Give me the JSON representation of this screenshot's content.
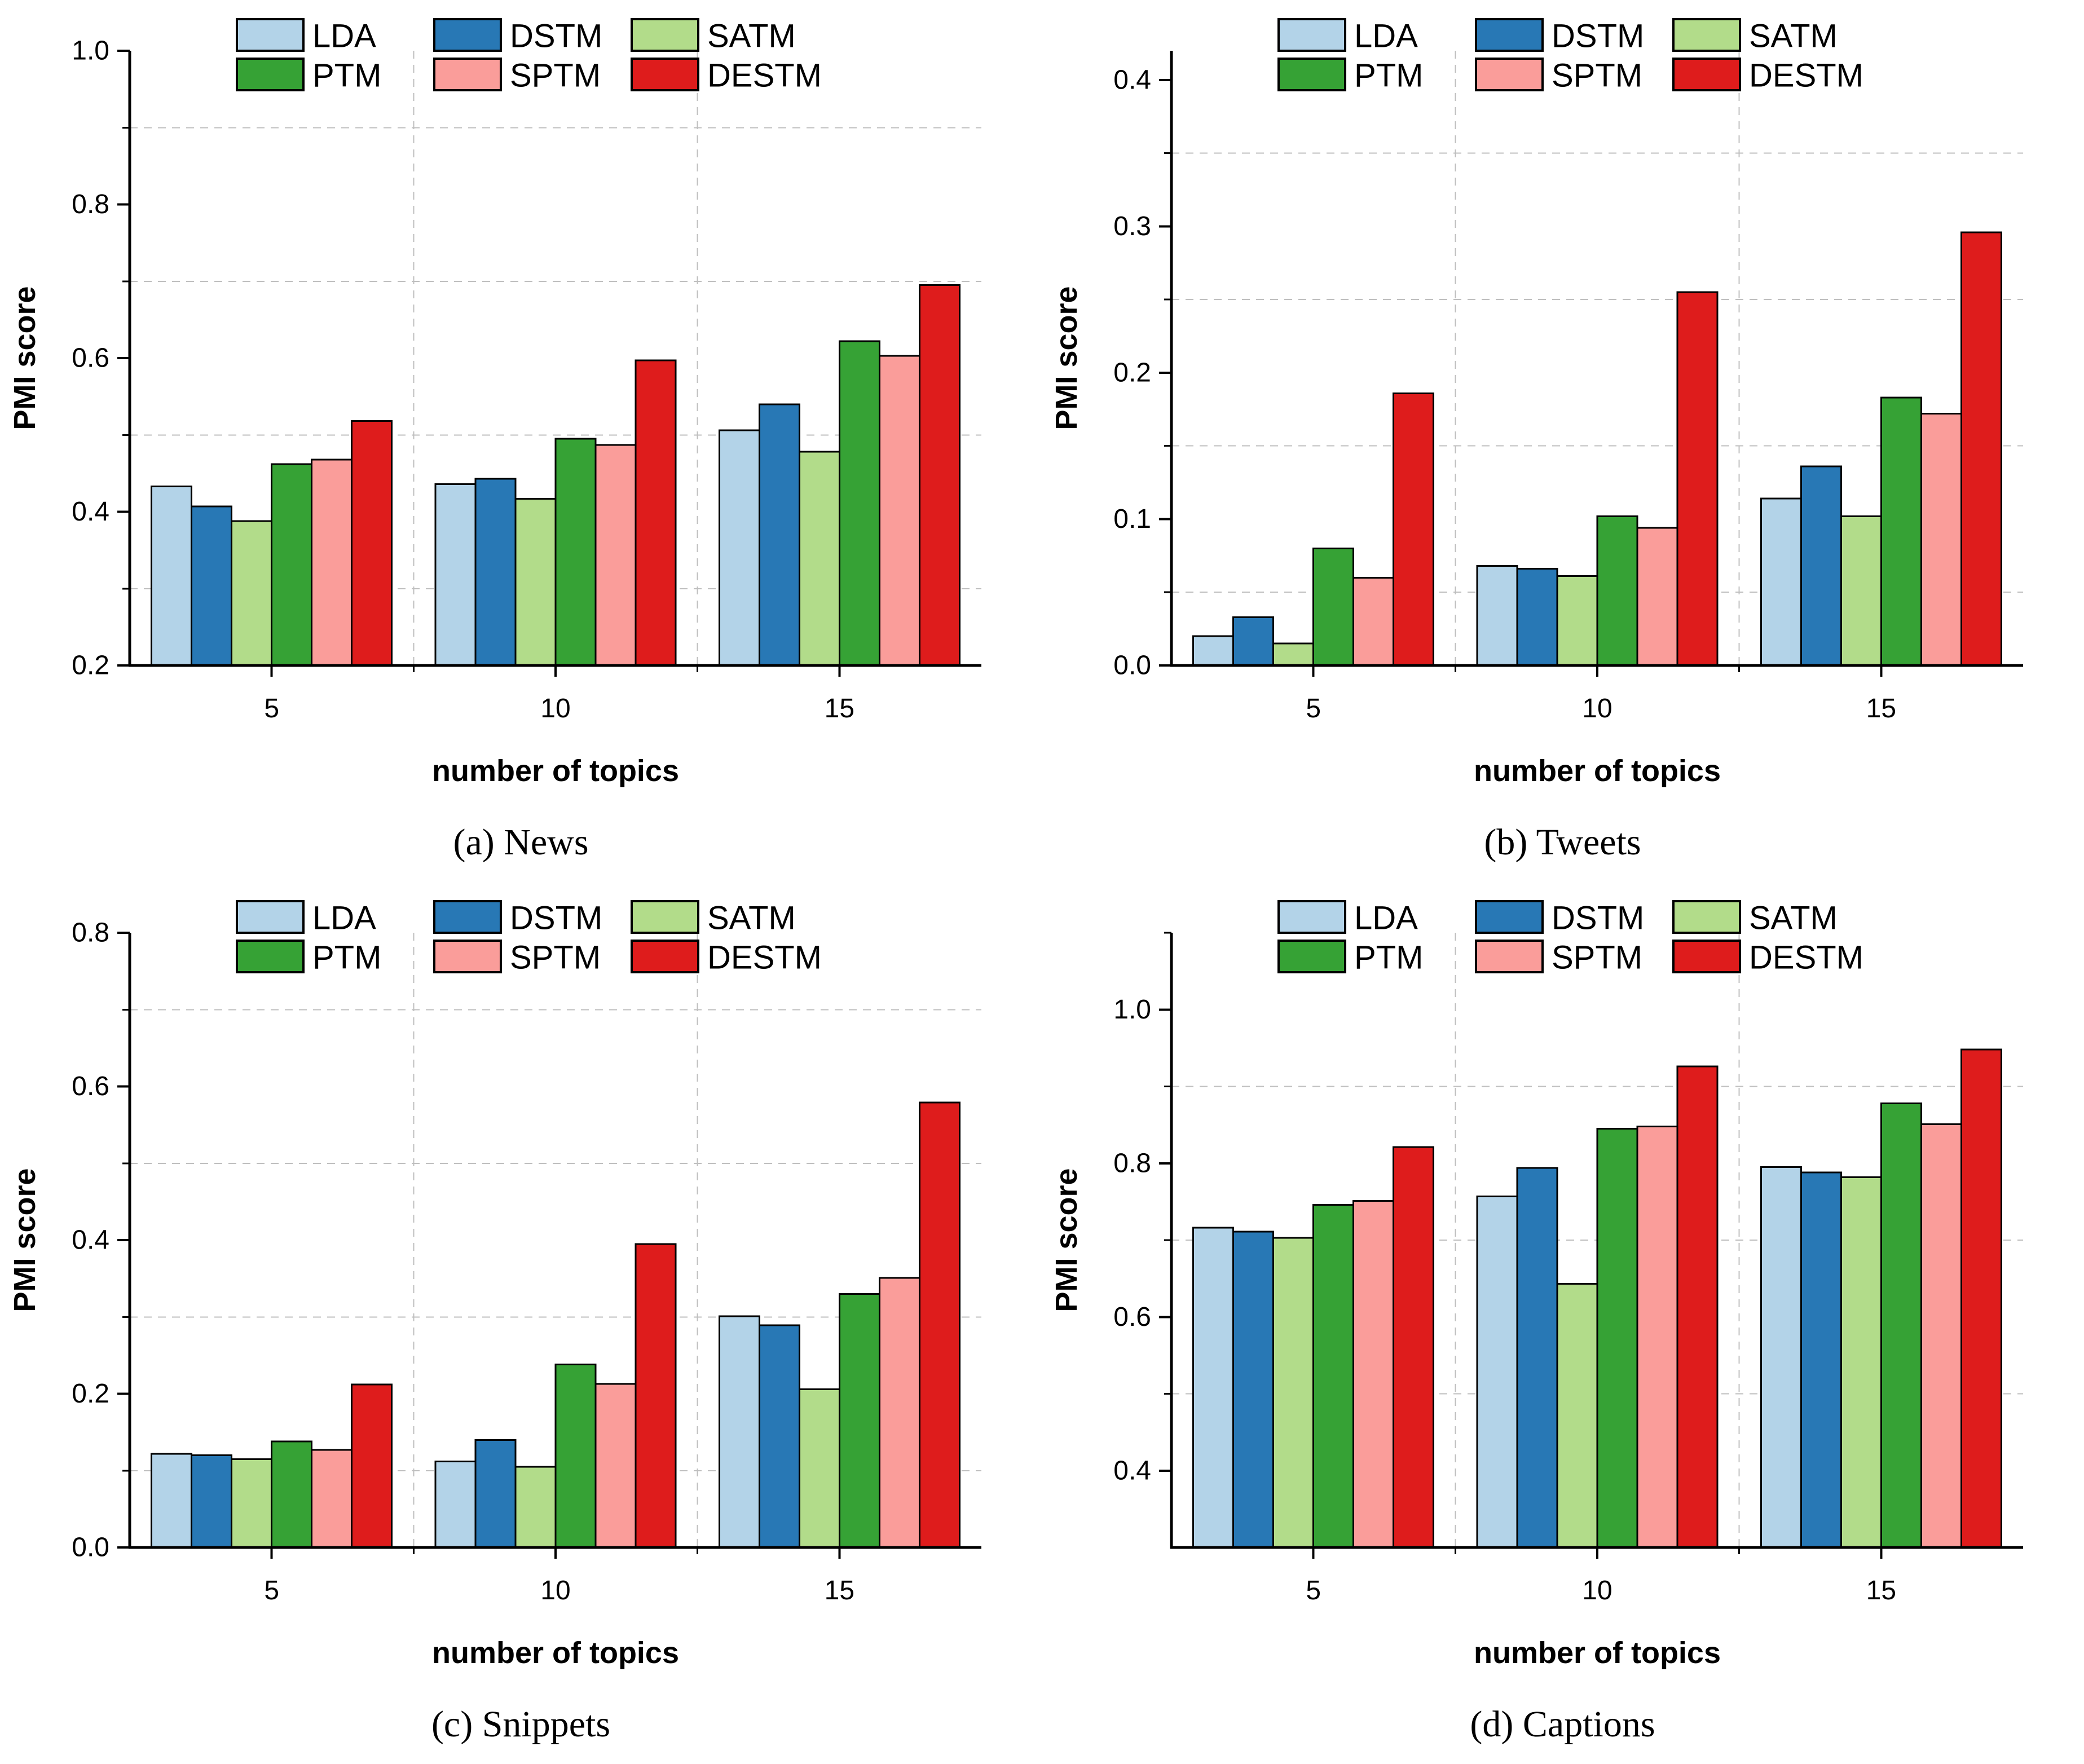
{
  "figure_caption_labels": [
    "(a) News",
    "(b) Tweets",
    "(c) Snippets",
    "(d) Captions"
  ],
  "colors": {
    "LDA": "#B3D3E8",
    "DSTM": "#2878B5",
    "SATM": "#B2DC8A",
    "PTM": "#36A235",
    "SPTM": "#FA9D9A",
    "DESTM": "#DE1C1C",
    "gridline": "#BFBFBF",
    "axis": "#000000"
  },
  "chart_data": [
    {
      "id": "a",
      "type": "bar",
      "caption": "(a) News",
      "xlabel": "number of topics",
      "ylabel": "PMI score",
      "categories": [
        "5",
        "10",
        "15"
      ],
      "series": [
        {
          "name": "LDA",
          "color": "#B3D3E8",
          "values": [
            0.433,
            0.436,
            0.506
          ]
        },
        {
          "name": "DSTM",
          "color": "#2878B5",
          "values": [
            0.407,
            0.443,
            0.54
          ]
        },
        {
          "name": "SATM",
          "color": "#B2DC8A",
          "values": [
            0.388,
            0.417,
            0.478
          ]
        },
        {
          "name": "PTM",
          "color": "#36A235",
          "values": [
            0.462,
            0.495,
            0.622
          ]
        },
        {
          "name": "SPTM",
          "color": "#FA9D9A",
          "values": [
            0.468,
            0.487,
            0.603
          ]
        },
        {
          "name": "DESTM",
          "color": "#DE1C1C",
          "values": [
            0.518,
            0.597,
            0.695
          ]
        }
      ],
      "ylim": [
        0.2,
        1.0
      ],
      "yticks": [
        0.2,
        0.4,
        0.6,
        0.8,
        1.0
      ],
      "ytick_labels": [
        "0.2",
        "0.4",
        "0.6",
        "0.8",
        "1.0"
      ],
      "yminor": [
        0.3,
        0.5,
        0.7,
        0.9
      ],
      "grid_y": [
        0.3,
        0.5,
        0.7,
        0.9
      ],
      "legend": [
        "LDA",
        "DSTM",
        "SATM",
        "PTM",
        "SPTM",
        "DESTM"
      ],
      "legend_position": "top-left-inside",
      "grid": true
    },
    {
      "id": "b",
      "type": "bar",
      "caption": "(b) Tweets",
      "xlabel": "number of topics",
      "ylabel": "PMI score",
      "categories": [
        "5",
        "10",
        "15"
      ],
      "series": [
        {
          "name": "LDA",
          "color": "#B3D3E8",
          "values": [
            0.02,
            0.068,
            0.114
          ]
        },
        {
          "name": "DSTM",
          "color": "#2878B5",
          "values": [
            0.033,
            0.066,
            0.136
          ]
        },
        {
          "name": "SATM",
          "color": "#B2DC8A",
          "values": [
            0.015,
            0.061,
            0.102
          ]
        },
        {
          "name": "PTM",
          "color": "#36A235",
          "values": [
            0.08,
            0.102,
            0.183
          ]
        },
        {
          "name": "SPTM",
          "color": "#FA9D9A",
          "values": [
            0.06,
            0.094,
            0.172
          ]
        },
        {
          "name": "DESTM",
          "color": "#DE1C1C",
          "values": [
            0.186,
            0.255,
            0.296
          ]
        }
      ],
      "ylim": [
        0.0,
        0.42
      ],
      "yticks": [
        0.0,
        0.1,
        0.2,
        0.3,
        0.4
      ],
      "ytick_labels": [
        "0.0",
        "0.1",
        "0.2",
        "0.3",
        "0.4"
      ],
      "yminor": [
        0.05,
        0.15,
        0.25,
        0.35
      ],
      "grid_y": [
        0.05,
        0.15,
        0.25,
        0.35
      ],
      "legend": [
        "LDA",
        "DSTM",
        "SATM",
        "PTM",
        "SPTM",
        "DESTM"
      ],
      "legend_position": "top-left-inside",
      "grid": true
    },
    {
      "id": "c",
      "type": "bar",
      "caption": "(c) Snippets",
      "xlabel": "number of topics",
      "ylabel": "PMI score",
      "categories": [
        "5",
        "10",
        "15"
      ],
      "series": [
        {
          "name": "LDA",
          "color": "#B3D3E8",
          "values": [
            0.122,
            0.112,
            0.301
          ]
        },
        {
          "name": "DSTM",
          "color": "#2878B5",
          "values": [
            0.12,
            0.14,
            0.289
          ]
        },
        {
          "name": "SATM",
          "color": "#B2DC8A",
          "values": [
            0.115,
            0.105,
            0.206
          ]
        },
        {
          "name": "PTM",
          "color": "#36A235",
          "values": [
            0.138,
            0.238,
            0.33
          ]
        },
        {
          "name": "SPTM",
          "color": "#FA9D9A",
          "values": [
            0.127,
            0.213,
            0.351
          ]
        },
        {
          "name": "DESTM",
          "color": "#DE1C1C",
          "values": [
            0.212,
            0.395,
            0.579
          ]
        }
      ],
      "ylim": [
        0.0,
        0.8
      ],
      "yticks": [
        0.0,
        0.2,
        0.4,
        0.6,
        0.8
      ],
      "ytick_labels": [
        "0.0",
        "0.2",
        "0.4",
        "0.6",
        "0.8"
      ],
      "yminor": [
        0.1,
        0.3,
        0.5,
        0.7
      ],
      "grid_y": [
        0.1,
        0.3,
        0.5,
        0.7
      ],
      "legend": [
        "LDA",
        "DSTM",
        "SATM",
        "PTM",
        "SPTM",
        "DESTM"
      ],
      "legend_position": "top-left-inside",
      "grid": true
    },
    {
      "id": "d",
      "type": "bar",
      "caption": "(d) Captions",
      "xlabel": "number of topics",
      "ylabel": "PMI score",
      "categories": [
        "5",
        "10",
        "15"
      ],
      "series": [
        {
          "name": "LDA",
          "color": "#B3D3E8",
          "values": [
            0.716,
            0.757,
            0.795
          ]
        },
        {
          "name": "DSTM",
          "color": "#2878B5",
          "values": [
            0.711,
            0.794,
            0.788
          ]
        },
        {
          "name": "SATM",
          "color": "#B2DC8A",
          "values": [
            0.703,
            0.643,
            0.782
          ]
        },
        {
          "name": "PTM",
          "color": "#36A235",
          "values": [
            0.746,
            0.845,
            0.878
          ]
        },
        {
          "name": "SPTM",
          "color": "#FA9D9A",
          "values": [
            0.751,
            0.848,
            0.851
          ]
        },
        {
          "name": "DESTM",
          "color": "#DE1C1C",
          "values": [
            0.821,
            0.926,
            0.948
          ]
        }
      ],
      "ylim": [
        0.3,
        1.1
      ],
      "yticks": [
        0.4,
        0.6,
        0.8,
        1.0
      ],
      "ytick_labels": [
        "0.4",
        "0.6",
        "0.8",
        "1.0"
      ],
      "yminor": [
        0.5,
        0.7,
        0.9,
        1.1
      ],
      "grid_y": [
        0.5,
        0.7,
        0.9
      ],
      "legend": [
        "LDA",
        "DSTM",
        "SATM",
        "PTM",
        "SPTM",
        "DESTM"
      ],
      "legend_position": "top-left-inside",
      "grid": true
    }
  ]
}
